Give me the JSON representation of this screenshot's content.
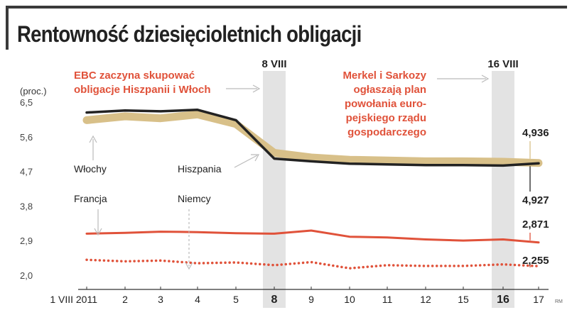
{
  "title": "Rentowność dziesięcioletnich obligacji",
  "credit": "RM",
  "chart_data": {
    "type": "line",
    "title": "Rentowność dziesięcioletnich obligacji",
    "ylabel": "(proc.)",
    "ylim": [
      2.0,
      6.5
    ],
    "yticks": [
      "6,5",
      "5,6",
      "4,7",
      "3,8",
      "2,9",
      "2,0"
    ],
    "ytick_values": [
      6.5,
      5.6,
      4.7,
      3.8,
      2.9,
      2.0
    ],
    "categories": [
      "1 VIII 2011",
      "2",
      "3",
      "4",
      "5",
      "8",
      "9",
      "10",
      "11",
      "12",
      "15",
      "16",
      "17"
    ],
    "bold_categories": [
      "8",
      "16"
    ],
    "highlight_bands": [
      {
        "category": "8",
        "label": "8 VIII"
      },
      {
        "category": "16",
        "label": "16 VIII"
      }
    ],
    "series": [
      {
        "name": "Hiszpania",
        "color": "#d8c089",
        "style": "thick",
        "values": [
          6.05,
          6.15,
          6.1,
          6.2,
          5.95,
          5.2,
          5.08,
          5.02,
          5.0,
          4.98,
          4.98,
          4.97,
          4.936
        ]
      },
      {
        "name": "Włochy",
        "color": "#222222",
        "style": "solid",
        "values": [
          6.25,
          6.3,
          6.28,
          6.32,
          6.05,
          5.05,
          4.98,
          4.92,
          4.9,
          4.88,
          4.88,
          4.87,
          4.927
        ]
      },
      {
        "name": "Francja",
        "color": "#e0523a",
        "style": "solid",
        "values": [
          3.1,
          3.12,
          3.15,
          3.14,
          3.11,
          3.1,
          3.18,
          3.02,
          3.0,
          2.95,
          2.92,
          2.95,
          2.871
        ]
      },
      {
        "name": "Niemcy",
        "color": "#e0523a",
        "style": "dotted",
        "values": [
          2.42,
          2.38,
          2.4,
          2.33,
          2.35,
          2.28,
          2.36,
          2.2,
          2.28,
          2.26,
          2.26,
          2.3,
          2.255
        ]
      }
    ],
    "value_labels": [
      {
        "text": "4,936",
        "series": "Hiszpania",
        "position": "above"
      },
      {
        "text": "4,927",
        "series": "Włochy",
        "position": "below"
      },
      {
        "text": "2,871",
        "series": "Francja",
        "position": "above"
      },
      {
        "text": "2,255",
        "series": "Niemcy",
        "position": "above"
      }
    ],
    "annotations": [
      {
        "text": [
          "EBC zaczyna skupować",
          "obligacje Hiszpanii i Włoch"
        ],
        "color": "#e0523a",
        "points_to": "8"
      },
      {
        "text": [
          "Merkel i Sarkozy",
          "ogłaszają plan",
          "powołania euro-",
          "pejskiego rządu",
          "gospodarczego"
        ],
        "color": "#e0523a",
        "points_to": "16"
      }
    ],
    "series_labels": [
      "Włochy",
      "Hiszpania",
      "Francja",
      "Niemcy"
    ],
    "grid": false,
    "legend": "none"
  }
}
